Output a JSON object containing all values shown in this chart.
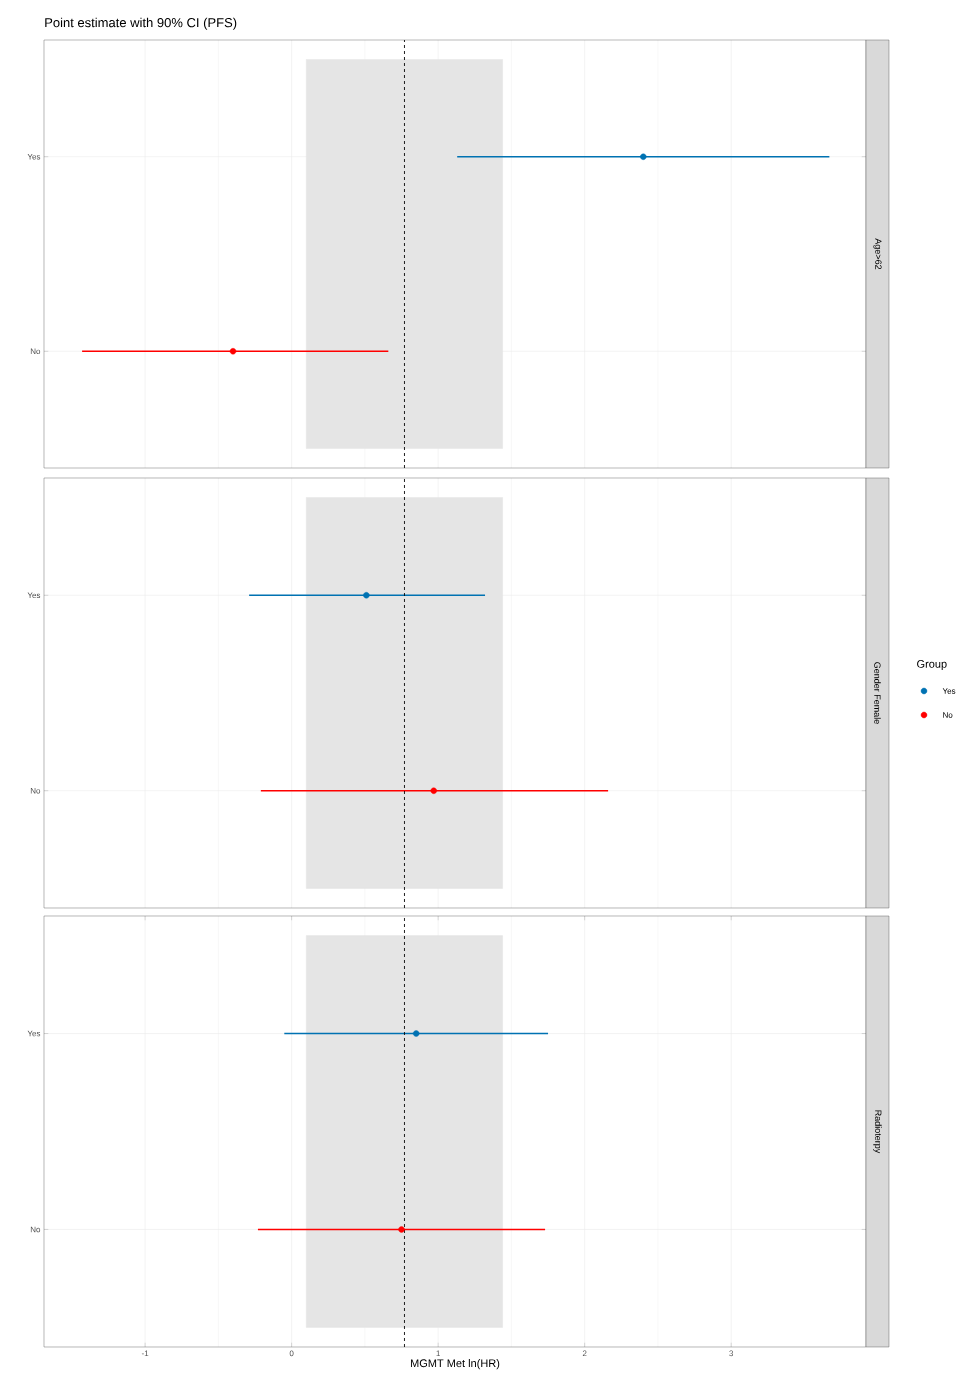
{
  "chart_data": [
    {
      "type": "scatter",
      "orientation": "horizontal",
      "title": "Point estimate with 90% CI (PFS)",
      "y2label": "Age>62",
      "categories": [
        "Yes",
        "No"
      ],
      "series": [
        {
          "color": "#0072b2",
          "values": [
            2.4,
            null
          ],
          "errors": [
            [
              1.13,
              3.67
            ],
            null
          ]
        },
        {
          "color": "#ff0000",
          "values": [
            null,
            -0.4
          ],
          "errors": [
            null,
            [
              -1.43,
              0.66
            ]
          ]
        }
      ],
      "xlim": [
        -1.69,
        3.92
      ],
      "xticks": [
        -1,
        0,
        1,
        2,
        3
      ],
      "tick_labels": "y",
      "grid": true,
      "marker": "circle",
      "ref_lines": [
        {
          "axis": "x",
          "value": 0.77,
          "line_style": "dashed"
        }
      ],
      "bands": [
        {
          "axis": "x",
          "from": 0.1,
          "to": 1.44,
          "color": "#e5e5e5"
        }
      ],
      "legend": false
    },
    {
      "type": "scatter",
      "orientation": "horizontal",
      "y2label": "Gender Female",
      "categories": [
        "Yes",
        "No"
      ],
      "legend_title": "Group",
      "series": [
        {
          "name": "Yes",
          "color": "#0072b2",
          "values": [
            0.51,
            null
          ],
          "errors": [
            [
              -0.29,
              1.32
            ],
            null
          ]
        },
        {
          "name": "No",
          "color": "#ff0000",
          "values": [
            null,
            0.97
          ],
          "errors": [
            null,
            [
              -0.21,
              2.16
            ]
          ]
        }
      ],
      "xlim": [
        -1.69,
        3.92
      ],
      "xticks": [
        -1,
        0,
        1,
        2,
        3
      ],
      "tick_labels": "y",
      "grid": true,
      "marker": "circle",
      "ref_lines": [
        {
          "axis": "x",
          "value": 0.77,
          "line_style": "dashed"
        }
      ],
      "bands": [
        {
          "axis": "x",
          "from": 0.1,
          "to": 1.44,
          "color": "#e5e5e5"
        }
      ],
      "legend": "right"
    },
    {
      "type": "scatter",
      "orientation": "horizontal",
      "y2label": "Radioterpy",
      "xlabel": "MGMT Met ln(HR)",
      "categories": [
        "Yes",
        "No"
      ],
      "series": [
        {
          "color": "#0072b2",
          "values": [
            0.85,
            null
          ],
          "errors": [
            [
              -0.05,
              1.75
            ],
            null
          ]
        },
        {
          "color": "#ff0000",
          "values": [
            null,
            0.75
          ],
          "errors": [
            null,
            [
              -0.23,
              1.73
            ]
          ]
        }
      ],
      "xlim": [
        -1.69,
        3.92
      ],
      "xticks": [
        -1,
        0,
        1,
        2,
        3
      ],
      "grid": true,
      "marker": "circle",
      "ref_lines": [
        {
          "axis": "x",
          "value": 0.77,
          "line_style": "dashed"
        }
      ],
      "bands": [
        {
          "axis": "x",
          "from": 0.1,
          "to": 1.44,
          "color": "#e5e5e5"
        }
      ],
      "legend": false
    }
  ]
}
